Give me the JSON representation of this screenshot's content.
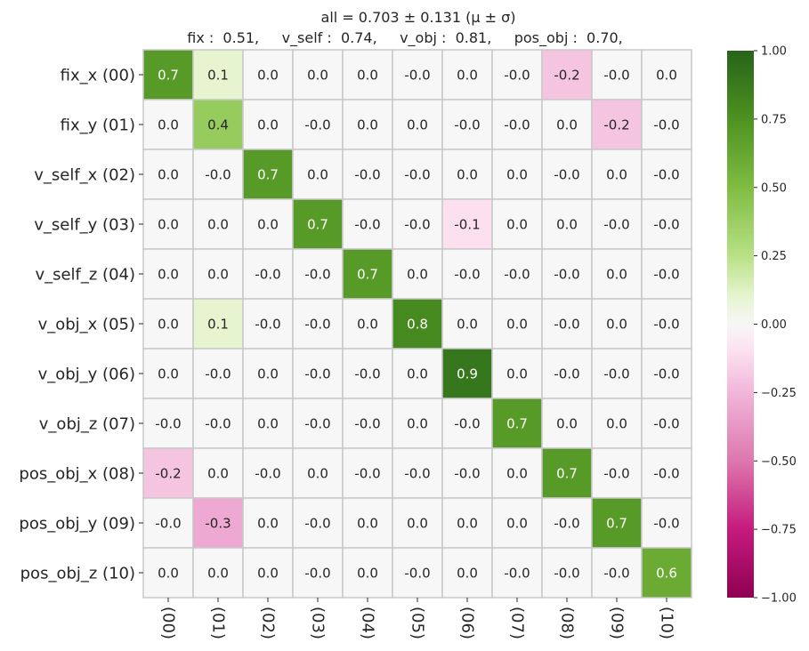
{
  "chart_data": {
    "type": "heatmap",
    "title": "all  =  0.703 ± 0.131  (μ ± σ)",
    "subtitle": "fix :  0.51,     v_self :  0.74,     v_obj :  0.81,     pos_obj :  0.70,",
    "row_labels": [
      "fix_x (00)",
      "fix_y (01)",
      "v_self_x (02)",
      "v_self_y (03)",
      "v_self_z (04)",
      "v_obj_x (05)",
      "v_obj_y (06)",
      "v_obj_z (07)",
      "pos_obj_x (08)",
      "pos_obj_y (09)",
      "pos_obj_z (10)"
    ],
    "col_labels": [
      "(00)",
      "(01)",
      "(02)",
      "(03)",
      "(04)",
      "(05)",
      "(06)",
      "(07)",
      "(08)",
      "(09)",
      "(10)"
    ],
    "values": [
      [
        0.7,
        0.1,
        0.0,
        0.0,
        0.0,
        -0.0,
        0.0,
        -0.0,
        -0.2,
        -0.0,
        0.0
      ],
      [
        0.0,
        0.4,
        0.0,
        -0.0,
        0.0,
        0.0,
        -0.0,
        -0.0,
        0.0,
        -0.2,
        -0.0
      ],
      [
        0.0,
        -0.0,
        0.7,
        0.0,
        -0.0,
        -0.0,
        0.0,
        0.0,
        -0.0,
        0.0,
        -0.0
      ],
      [
        0.0,
        0.0,
        0.0,
        0.7,
        -0.0,
        -0.0,
        -0.1,
        0.0,
        0.0,
        -0.0,
        -0.0
      ],
      [
        0.0,
        0.0,
        -0.0,
        -0.0,
        0.7,
        0.0,
        -0.0,
        -0.0,
        -0.0,
        0.0,
        -0.0
      ],
      [
        0.0,
        0.1,
        -0.0,
        -0.0,
        0.0,
        0.8,
        0.0,
        0.0,
        -0.0,
        0.0,
        -0.0
      ],
      [
        0.0,
        -0.0,
        0.0,
        -0.0,
        -0.0,
        0.0,
        0.9,
        0.0,
        -0.0,
        -0.0,
        -0.0
      ],
      [
        -0.0,
        -0.0,
        0.0,
        -0.0,
        -0.0,
        0.0,
        -0.0,
        0.7,
        0.0,
        0.0,
        -0.0
      ],
      [
        -0.2,
        0.0,
        -0.0,
        0.0,
        -0.0,
        -0.0,
        -0.0,
        0.0,
        0.7,
        -0.0,
        -0.0
      ],
      [
        -0.0,
        -0.3,
        0.0,
        -0.0,
        0.0,
        0.0,
        0.0,
        0.0,
        -0.0,
        0.7,
        -0.0
      ],
      [
        0.0,
        0.0,
        0.0,
        -0.0,
        0.0,
        -0.0,
        0.0,
        -0.0,
        -0.0,
        -0.0,
        0.6
      ]
    ],
    "cell_labels": [
      [
        "0.7",
        "0.1",
        "0.0",
        "0.0",
        "0.0",
        "-0.0",
        "0.0",
        "-0.0",
        "-0.2",
        "-0.0",
        "0.0"
      ],
      [
        "0.0",
        "0.4",
        "0.0",
        "-0.0",
        "0.0",
        "0.0",
        "-0.0",
        "-0.0",
        "0.0",
        "-0.2",
        "-0.0"
      ],
      [
        "0.0",
        "-0.0",
        "0.7",
        "0.0",
        "-0.0",
        "-0.0",
        "0.0",
        "0.0",
        "-0.0",
        "0.0",
        "-0.0"
      ],
      [
        "0.0",
        "0.0",
        "0.0",
        "0.7",
        "-0.0",
        "-0.0",
        "-0.1",
        "0.0",
        "0.0",
        "-0.0",
        "-0.0"
      ],
      [
        "0.0",
        "0.0",
        "-0.0",
        "-0.0",
        "0.7",
        "0.0",
        "-0.0",
        "-0.0",
        "-0.0",
        "0.0",
        "-0.0"
      ],
      [
        "0.0",
        "0.1",
        "-0.0",
        "-0.0",
        "0.0",
        "0.8",
        "0.0",
        "0.0",
        "-0.0",
        "0.0",
        "-0.0"
      ],
      [
        "0.0",
        "-0.0",
        "0.0",
        "-0.0",
        "-0.0",
        "0.0",
        "0.9",
        "0.0",
        "-0.0",
        "-0.0",
        "-0.0"
      ],
      [
        "-0.0",
        "-0.0",
        "0.0",
        "-0.0",
        "-0.0",
        "0.0",
        "-0.0",
        "0.7",
        "0.0",
        "0.0",
        "-0.0"
      ],
      [
        "-0.2",
        "0.0",
        "-0.0",
        "0.0",
        "-0.0",
        "-0.0",
        "-0.0",
        "0.0",
        "0.7",
        "-0.0",
        "-0.0"
      ],
      [
        "-0.0",
        "-0.3",
        "0.0",
        "-0.0",
        "0.0",
        "0.0",
        "0.0",
        "0.0",
        "-0.0",
        "0.7",
        "-0.0"
      ],
      [
        "0.0",
        "0.0",
        "0.0",
        "-0.0",
        "0.0",
        "-0.0",
        "0.0",
        "-0.0",
        "-0.0",
        "-0.0",
        "0.6"
      ]
    ],
    "colorbar": {
      "range": [
        -1.0,
        1.0
      ],
      "ticks": [
        1.0,
        0.75,
        0.5,
        0.25,
        0.0,
        -0.25,
        -0.5,
        -0.75,
        -1.0
      ],
      "tick_labels": [
        "1.00",
        "0.75",
        "0.50",
        "0.25",
        "0.00",
        "−0.25",
        "−0.50",
        "−0.75",
        "−1.00"
      ],
      "placement": "right"
    },
    "colormap": {
      "name": "PiYG",
      "stops": [
        [
          -1.0,
          "#8e0152"
        ],
        [
          -0.75,
          "#c51b7d"
        ],
        [
          -0.5,
          "#de77ae"
        ],
        [
          -0.25,
          "#f1b6da"
        ],
        [
          -0.1,
          "#fde0ef"
        ],
        [
          0.0,
          "#f7f7f7"
        ],
        [
          0.1,
          "#e6f5d0"
        ],
        [
          0.25,
          "#b8e186"
        ],
        [
          0.5,
          "#7fbc41"
        ],
        [
          0.75,
          "#4d9221"
        ],
        [
          1.0,
          "#276419"
        ]
      ]
    },
    "colors": {
      "cell_border": "#c8c8c8",
      "text_dark": "#262626",
      "text_light": "#ffffff"
    },
    "grid": false
  }
}
